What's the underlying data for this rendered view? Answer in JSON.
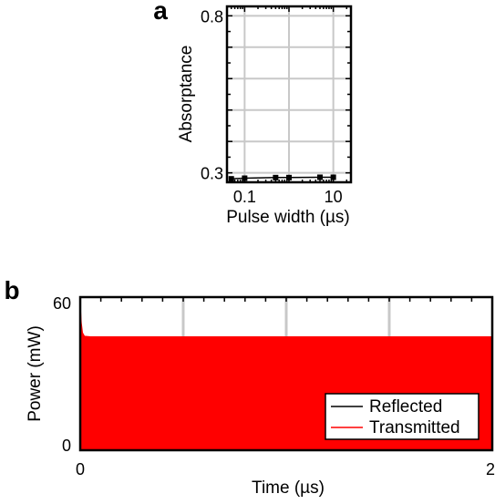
{
  "chart_data": [
    {
      "panel": "a",
      "type": "line",
      "xlabel": "Pulse width (µs)",
      "ylabel": "Absorptance",
      "xscale": "log",
      "xlim": [
        0.04,
        25
      ],
      "ylim": [
        0.27,
        0.83
      ],
      "xticks": [
        0.1,
        10
      ],
      "xtick_labels": [
        "0.1",
        "10"
      ],
      "yticks": [
        0.3,
        0.8
      ],
      "ytick_labels": [
        "0.3",
        "0.8"
      ],
      "grid": true,
      "series": [
        {
          "color": "#000000",
          "marker": "square",
          "x": [
            0.05,
            0.1,
            0.5,
            1,
            5,
            10
          ],
          "y": [
            0.281,
            0.283,
            0.285,
            0.285,
            0.286,
            0.286
          ]
        }
      ]
    },
    {
      "panel": "b",
      "type": "area",
      "xlabel": "Time (µs)",
      "ylabel": "Power (mW)",
      "xlim": [
        0,
        2
      ],
      "ylim": [
        0,
        60
      ],
      "xtick_labels": [
        "0",
        "2"
      ],
      "ytick_labels": [
        "0",
        "60"
      ],
      "grid": true,
      "legend_position": "bottom-right",
      "series": [
        {
          "name": "Reflected",
          "color": "#000000",
          "x": [
            0,
            2
          ],
          "y": [
            0,
            0
          ]
        },
        {
          "name": "Transmitted",
          "color": "#ff0000",
          "x": [
            0,
            0.004,
            0.01,
            0.02,
            0.05,
            1.0,
            2.0
          ],
          "y": [
            56,
            50,
            46,
            44.6,
            44.4,
            44.4,
            44.4
          ],
          "y_min": 0
        }
      ]
    }
  ]
}
